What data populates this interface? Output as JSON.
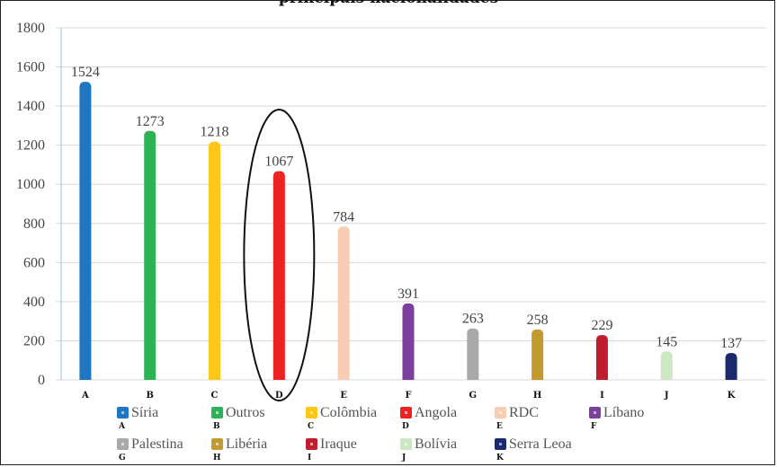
{
  "chart_data": {
    "type": "bar",
    "title": "principais nacionalidades",
    "xlabel": "",
    "ylabel": "",
    "ylim": [
      0,
      1800
    ],
    "yticks": [
      0,
      200,
      400,
      600,
      800,
      1000,
      1200,
      1400,
      1600,
      1800
    ],
    "grid": true,
    "legend_position": "bottom",
    "categories": [
      "A",
      "B",
      "C",
      "D",
      "E",
      "F",
      "G",
      "H",
      "I",
      "J",
      "K"
    ],
    "series": [
      {
        "values": [
          1524,
          1273,
          1218,
          1067,
          784,
          391,
          263,
          258,
          229,
          145,
          137
        ],
        "labels": [
          "1524",
          "1273",
          "1218",
          "1067",
          "784",
          "391",
          "263",
          "258",
          "229",
          "145",
          "137"
        ]
      }
    ],
    "legend": [
      {
        "name": "Síria",
        "letter": "A",
        "color": "#1f77c4"
      },
      {
        "name": "Outros",
        "letter": "B",
        "color": "#2db256"
      },
      {
        "name": "Colômbia",
        "letter": "C",
        "color": "#ffc61a"
      },
      {
        "name": "Angola",
        "letter": "D",
        "color": "#ee2222"
      },
      {
        "name": "RDC",
        "letter": "E",
        "color": "#f7ceb3"
      },
      {
        "name": "Líbano",
        "letter": "F",
        "color": "#7b3f9e"
      },
      {
        "name": "Palestina",
        "letter": "G",
        "color": "#a9a9a9"
      },
      {
        "name": "Libéria",
        "letter": "H",
        "color": "#c39a2e"
      },
      {
        "name": "Iraque",
        "letter": "I",
        "color": "#bf1e2e"
      },
      {
        "name": "Bolívia",
        "letter": "J",
        "color": "#cde6c3"
      },
      {
        "name": "Serra Leoa",
        "letter": "K",
        "color": "#1a2a6c"
      }
    ],
    "highlight": {
      "category": "D",
      "shape": "ellipse"
    }
  }
}
